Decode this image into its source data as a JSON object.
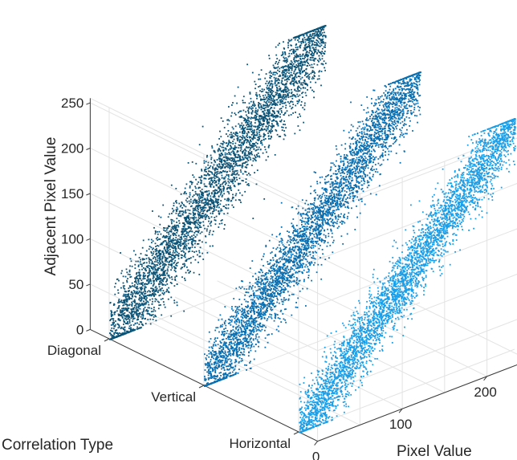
{
  "chart_data": {
    "type": "scatter",
    "projection": "3d",
    "title": "",
    "xlabel": "Pixel Value",
    "ylabel": "Correlation Type",
    "zlabel": "Adjacent Pixel Value",
    "xlim": [
      0,
      255
    ],
    "zlim": [
      0,
      255
    ],
    "x_ticks": [
      0,
      100,
      200
    ],
    "x_tick_labels": [
      "0",
      "100",
      "200"
    ],
    "y_categories": [
      "Horizontal",
      "Vertical",
      "Diagonal"
    ],
    "z_ticks": [
      0,
      50,
      100,
      150,
      200,
      250
    ],
    "z_tick_labels": [
      "0",
      "50",
      "100",
      "150",
      "200",
      "250"
    ],
    "grid": true,
    "series": [
      {
        "name": "Horizontal",
        "category_index": 0,
        "color": "#1a9ee8",
        "correlation": "high (points cluster around z = x)",
        "spread": 45
      },
      {
        "name": "Vertical",
        "category_index": 1,
        "color": "#0a6fb0",
        "correlation": "high (points cluster around z = x)",
        "spread": 50
      },
      {
        "name": "Diagonal",
        "category_index": 2,
        "color": "#0b5478",
        "correlation": "high (points cluster around z = x)",
        "spread": 55
      }
    ]
  }
}
